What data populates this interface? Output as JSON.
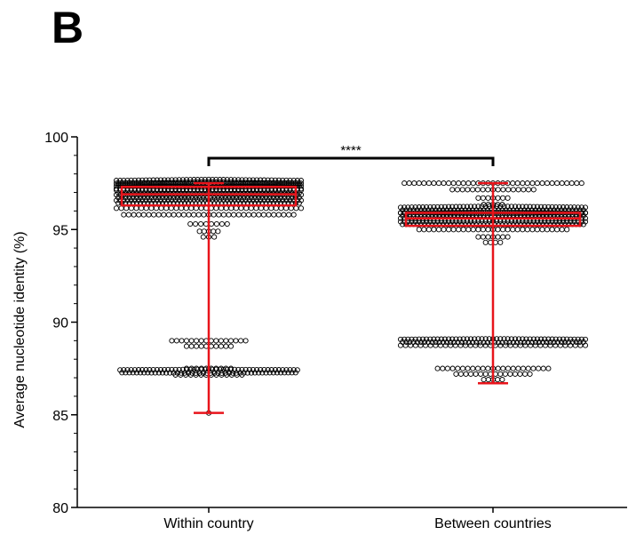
{
  "panel_label": "B",
  "chart_data": {
    "type": "scatter",
    "subtype": "dot-plot-with-box-whisker",
    "title": "",
    "xlabel": "",
    "ylabel": "Average nucleotide identity (%)",
    "ylim": [
      80,
      100
    ],
    "yticks": [
      "80",
      "85",
      "90",
      "95",
      "100"
    ],
    "categories": [
      "Within country",
      "Between countries"
    ],
    "series": [
      {
        "category": "Within country",
        "box": {
          "min": 85.1,
          "q1": 96.3,
          "median": 96.9,
          "q3": 97.3,
          "max": 97.5
        },
        "clusters": [
          {
            "y": 97.5,
            "halfwidth": 0.5,
            "rows": 3,
            "dense": true
          },
          {
            "y": 97.35,
            "halfwidth": 0.5,
            "rows": 3,
            "dense": true
          },
          {
            "y": 97.05,
            "halfwidth": 0.5,
            "rows": 2,
            "dense": true
          },
          {
            "y": 96.8,
            "halfwidth": 0.5,
            "rows": 2,
            "dense": true
          },
          {
            "y": 96.5,
            "halfwidth": 0.5,
            "rows": 2,
            "dense": true
          },
          {
            "y": 96.15,
            "halfwidth": 0.5,
            "rows": 1,
            "dense": false
          },
          {
            "y": 95.8,
            "halfwidth": 0.46,
            "rows": 1,
            "dense": false
          },
          {
            "y": 95.3,
            "halfwidth": 0.1,
            "rows": 1,
            "dense": false
          },
          {
            "y": 94.9,
            "halfwidth": 0.05,
            "rows": 1,
            "dense": false
          },
          {
            "y": 94.6,
            "halfwidth": 0.03,
            "rows": 1,
            "dense": false
          },
          {
            "y": 89.0,
            "halfwidth": 0.2,
            "rows": 1,
            "dense": false
          },
          {
            "y": 88.7,
            "halfwidth": 0.12,
            "rows": 1,
            "dense": false
          },
          {
            "y": 87.5,
            "halfwidth": 0.12,
            "rows": 1,
            "dense": false
          },
          {
            "y": 87.35,
            "halfwidth": 0.48,
            "rows": 2,
            "dense": true
          },
          {
            "y": 87.15,
            "halfwidth": 0.18,
            "rows": 1,
            "dense": false
          },
          {
            "y": 85.1,
            "halfwidth": 0.0,
            "rows": 1,
            "dense": false
          }
        ]
      },
      {
        "category": "Between countries",
        "box": {
          "min": 86.7,
          "q1": 95.2,
          "median": 95.6,
          "q3": 95.9,
          "max": 97.5
        },
        "clusters": [
          {
            "y": 97.5,
            "halfwidth": 0.48,
            "rows": 1,
            "dense": false
          },
          {
            "y": 97.15,
            "halfwidth": 0.22,
            "rows": 1,
            "dense": false
          },
          {
            "y": 96.7,
            "halfwidth": 0.08,
            "rows": 1,
            "dense": false
          },
          {
            "y": 96.35,
            "halfwidth": 0.05,
            "rows": 1,
            "dense": false
          },
          {
            "y": 96.05,
            "halfwidth": 0.5,
            "rows": 3,
            "dense": true
          },
          {
            "y": 95.75,
            "halfwidth": 0.5,
            "rows": 3,
            "dense": true
          },
          {
            "y": 95.35,
            "halfwidth": 0.5,
            "rows": 2,
            "dense": true
          },
          {
            "y": 95.0,
            "halfwidth": 0.4,
            "rows": 1,
            "dense": false
          },
          {
            "y": 94.6,
            "halfwidth": 0.08,
            "rows": 1,
            "dense": false
          },
          {
            "y": 94.3,
            "halfwidth": 0.04,
            "rows": 1,
            "dense": false
          },
          {
            "y": 89.0,
            "halfwidth": 0.5,
            "rows": 2,
            "dense": true
          },
          {
            "y": 88.75,
            "halfwidth": 0.5,
            "rows": 1,
            "dense": false
          },
          {
            "y": 87.5,
            "halfwidth": 0.3,
            "rows": 1,
            "dense": false
          },
          {
            "y": 87.2,
            "halfwidth": 0.2,
            "rows": 1,
            "dense": false
          },
          {
            "y": 86.9,
            "halfwidth": 0.05,
            "rows": 1,
            "dense": false
          }
        ]
      }
    ],
    "significance": {
      "label": "****",
      "from": "Within country",
      "to": "Between countries"
    },
    "colors": {
      "points": "#000000",
      "box": "#e8141b",
      "axis": "#000000"
    },
    "grid": false,
    "legend": "none"
  }
}
